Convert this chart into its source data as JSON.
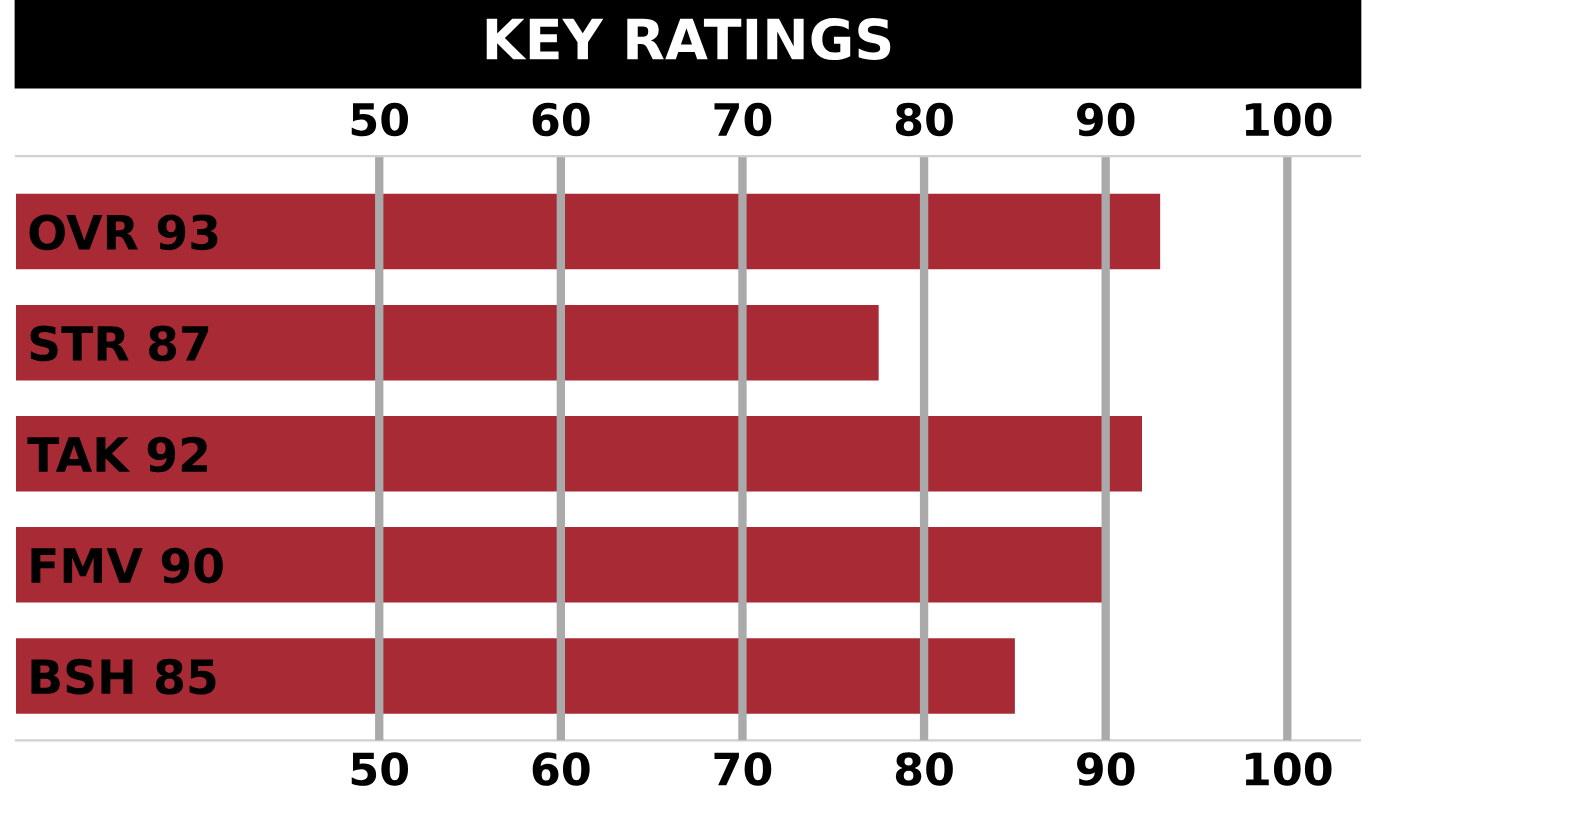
{
  "chart_data": {
    "type": "bar",
    "orientation": "horizontal",
    "title": "KEY RATINGS",
    "categories": [
      "OVR 93",
      "STR 87",
      "TAK 92",
      "FMV 90",
      "BSH 85"
    ],
    "values": [
      93,
      77.5,
      92,
      90,
      85
    ],
    "color": "#a82a35",
    "xlim": [
      30,
      104
    ],
    "xticks": [
      50,
      60,
      70,
      80,
      90,
      100
    ],
    "x2lim": [
      30,
      104
    ],
    "x2ticks": [
      50,
      60,
      70,
      80,
      90,
      100
    ],
    "grid": "x",
    "legend": false
  }
}
